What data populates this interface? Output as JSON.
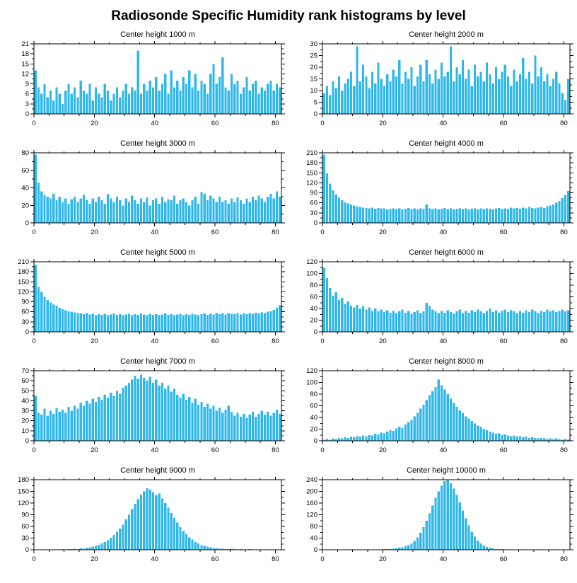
{
  "page_title": "Radiosonde Specific Humidity rank histograms by level",
  "style": {
    "bar_color": "#2db7ea",
    "axis_color": "#000000",
    "background": "#ffffff"
  },
  "chart_data": [
    {
      "type": "bar",
      "title": "Center height 1000 m",
      "x_start": 0,
      "x_end": 82,
      "xticks": [
        0,
        20,
        40,
        60,
        80
      ],
      "ylim": [
        0,
        21
      ],
      "yticks": [
        0,
        3,
        6,
        9,
        12,
        15,
        18,
        21
      ],
      "xlabel": "",
      "ylabel": "",
      "grid": false,
      "legend": "none",
      "values": [
        13,
        8,
        6,
        9,
        5,
        7,
        4,
        8,
        6,
        3,
        7,
        9,
        6,
        8,
        5,
        10,
        7,
        6,
        9,
        4,
        8,
        6,
        5,
        9,
        7,
        4,
        6,
        8,
        5,
        7,
        9,
        6,
        8,
        7,
        19,
        6,
        9,
        7,
        10,
        8,
        11,
        7,
        9,
        12,
        6,
        13,
        8,
        10,
        7,
        11,
        9,
        13,
        8,
        12,
        7,
        10,
        9,
        6,
        12,
        15,
        9,
        11,
        17,
        8,
        7,
        12,
        9,
        10,
        6,
        8,
        11,
        7,
        9,
        10,
        6,
        8,
        7,
        9,
        10,
        7,
        9,
        8
      ]
    },
    {
      "type": "bar",
      "title": "Center height 2000 m",
      "x_start": 0,
      "x_end": 82,
      "xticks": [
        0,
        20,
        40,
        60,
        80
      ],
      "ylim": [
        0,
        30
      ],
      "yticks": [
        0,
        5,
        10,
        15,
        20,
        25,
        30
      ],
      "xlabel": "",
      "ylabel": "",
      "grid": false,
      "legend": "none",
      "values": [
        9,
        12,
        8,
        14,
        11,
        16,
        10,
        13,
        15,
        18,
        12,
        29,
        14,
        21,
        16,
        11,
        18,
        13,
        22,
        15,
        12,
        17,
        14,
        19,
        16,
        23,
        13,
        18,
        15,
        20,
        12,
        16,
        21,
        14,
        23,
        17,
        13,
        19,
        15,
        22,
        16,
        18,
        29,
        14,
        20,
        17,
        23,
        15,
        19,
        12,
        21,
        16,
        18,
        14,
        22,
        17,
        13,
        20,
        15,
        18,
        21,
        16,
        12,
        19,
        14,
        17,
        24,
        15,
        18,
        13,
        25,
        16,
        20,
        14,
        17,
        12,
        15,
        18,
        13,
        9,
        6,
        15
      ]
    },
    {
      "type": "bar",
      "title": "Center height 3000 m",
      "x_start": 0,
      "x_end": 82,
      "xticks": [
        0,
        20,
        40,
        60,
        80
      ],
      "ylim": [
        0,
        80
      ],
      "yticks": [
        0,
        20,
        40,
        60,
        80
      ],
      "xlabel": "",
      "ylabel": "",
      "grid": false,
      "legend": "none",
      "values": [
        78,
        46,
        36,
        32,
        30,
        28,
        33,
        26,
        30,
        24,
        28,
        22,
        27,
        30,
        24,
        28,
        32,
        26,
        22,
        28,
        24,
        30,
        26,
        22,
        33,
        28,
        24,
        30,
        26,
        20,
        28,
        24,
        31,
        26,
        22,
        28,
        24,
        29,
        20,
        26,
        28,
        22,
        30,
        24,
        27,
        26,
        31,
        22,
        26,
        28,
        24,
        20,
        26,
        30,
        22,
        35,
        33,
        26,
        31,
        28,
        24,
        30,
        24,
        26,
        22,
        28,
        24,
        29,
        26,
        22,
        28,
        24,
        30,
        26,
        31,
        28,
        24,
        30,
        33,
        28,
        36,
        30
      ]
    },
    {
      "type": "bar",
      "title": "Center height 4000 m",
      "x_start": 0,
      "x_end": 82,
      "xticks": [
        0,
        20,
        40,
        60,
        80
      ],
      "ylim": [
        0,
        210
      ],
      "yticks": [
        0,
        30,
        60,
        90,
        120,
        150,
        180,
        210
      ],
      "xlabel": "",
      "ylabel": "",
      "grid": false,
      "legend": "none",
      "values": [
        205,
        148,
        118,
        98,
        85,
        75,
        68,
        62,
        58,
        55,
        52,
        50,
        48,
        46,
        45,
        44,
        46,
        42,
        45,
        43,
        44,
        40,
        42,
        44,
        41,
        43,
        40,
        42,
        45,
        41,
        43,
        40,
        44,
        42,
        55,
        43,
        41,
        44,
        40,
        42,
        45,
        41,
        43,
        40,
        42,
        44,
        41,
        43,
        40,
        42,
        44,
        40,
        43,
        41,
        44,
        42,
        40,
        43,
        45,
        41,
        44,
        42,
        46,
        43,
        45,
        42,
        46,
        44,
        48,
        45,
        44,
        46,
        48,
        45,
        50,
        52,
        55,
        60,
        66,
        74,
        84,
        95
      ]
    },
    {
      "type": "bar",
      "title": "Center height 5000 m",
      "x_start": 0,
      "x_end": 82,
      "xticks": [
        0,
        20,
        40,
        60,
        80
      ],
      "ylim": [
        0,
        210
      ],
      "yticks": [
        0,
        30,
        60,
        90,
        120,
        150,
        180,
        210
      ],
      "xlabel": "",
      "ylabel": "",
      "grid": false,
      "legend": "none",
      "values": [
        200,
        135,
        120,
        105,
        95,
        88,
        82,
        78,
        72,
        68,
        65,
        62,
        60,
        58,
        56,
        55,
        53,
        56,
        52,
        54,
        50,
        53,
        51,
        54,
        50,
        52,
        55,
        51,
        53,
        50,
        52,
        54,
        50,
        53,
        51,
        55,
        52,
        50,
        54,
        51,
        53,
        50,
        52,
        55,
        51,
        53,
        50,
        52,
        54,
        50,
        53,
        51,
        54,
        52,
        50,
        53,
        55,
        51,
        54,
        52,
        56,
        53,
        55,
        52,
        56,
        54,
        53,
        56,
        52,
        55,
        53,
        56,
        54,
        57,
        55,
        58,
        56,
        60,
        62,
        66,
        72,
        80
      ]
    },
    {
      "type": "bar",
      "title": "Center height 6000 m",
      "x_start": 0,
      "x_end": 82,
      "xticks": [
        0,
        20,
        40,
        60,
        80
      ],
      "ylim": [
        0,
        120
      ],
      "yticks": [
        0,
        20,
        40,
        60,
        80,
        100,
        120
      ],
      "xlabel": "",
      "ylabel": "",
      "grid": false,
      "legend": "none",
      "values": [
        110,
        92,
        75,
        62,
        68,
        55,
        58,
        48,
        52,
        45,
        42,
        46,
        40,
        44,
        38,
        42,
        36,
        40,
        35,
        38,
        34,
        37,
        33,
        36,
        32,
        35,
        38,
        33,
        36,
        31,
        34,
        37,
        32,
        35,
        50,
        44,
        38,
        35,
        32,
        36,
        33,
        37,
        34,
        31,
        35,
        38,
        32,
        36,
        33,
        37,
        34,
        38,
        35,
        32,
        36,
        40,
        34,
        37,
        33,
        36,
        38,
        34,
        37,
        35,
        32,
        36,
        33,
        37,
        34,
        38,
        35,
        32,
        36,
        34,
        38,
        35,
        37,
        34,
        36,
        38,
        35,
        37
      ]
    },
    {
      "type": "bar",
      "title": "Center height 7000 m",
      "x_start": 0,
      "x_end": 82,
      "xticks": [
        0,
        20,
        40,
        60,
        80
      ],
      "ylim": [
        0,
        70
      ],
      "yticks": [
        0,
        10,
        20,
        30,
        40,
        50,
        60,
        70
      ],
      "xlabel": "",
      "ylabel": "",
      "grid": false,
      "legend": "none",
      "values": [
        45,
        28,
        26,
        32,
        25,
        30,
        27,
        33,
        29,
        31,
        28,
        34,
        30,
        35,
        32,
        38,
        35,
        40,
        37,
        42,
        39,
        44,
        41,
        46,
        43,
        48,
        45,
        50,
        47,
        53,
        55,
        58,
        61,
        65,
        62,
        66,
        63,
        60,
        64,
        58,
        61,
        55,
        58,
        52,
        55,
        49,
        52,
        46,
        43,
        47,
        41,
        44,
        38,
        42,
        36,
        39,
        34,
        37,
        32,
        35,
        30,
        33,
        28,
        31,
        35,
        29,
        25,
        28,
        24,
        27,
        23,
        26,
        29,
        24,
        27,
        30,
        26,
        29,
        25,
        28,
        31,
        27
      ]
    },
    {
      "type": "bar",
      "title": "Center height 8000 m",
      "x_start": 0,
      "x_end": 82,
      "xticks": [
        0,
        20,
        40,
        60,
        80
      ],
      "ylim": [
        0,
        120
      ],
      "yticks": [
        0,
        20,
        40,
        60,
        80,
        100,
        120
      ],
      "xlabel": "",
      "ylabel": "",
      "grid": false,
      "legend": "none",
      "values": [
        2,
        3,
        2,
        4,
        3,
        5,
        4,
        6,
        5,
        7,
        6,
        8,
        7,
        9,
        8,
        10,
        9,
        12,
        11,
        14,
        13,
        16,
        18,
        17,
        21,
        24,
        22,
        28,
        32,
        36,
        42,
        48,
        55,
        62,
        70,
        78,
        85,
        92,
        105,
        95,
        88,
        80,
        72,
        65,
        58,
        52,
        48,
        42,
        38,
        34,
        30,
        26,
        24,
        20,
        18,
        16,
        14,
        12,
        13,
        10,
        11,
        9,
        8,
        9,
        7,
        8,
        6,
        7,
        5,
        6,
        5,
        4,
        5,
        4,
        3,
        4,
        3,
        4,
        3,
        2,
        3,
        2
      ]
    },
    {
      "type": "bar",
      "title": "Center height 9000 m",
      "x_start": 0,
      "x_end": 82,
      "xticks": [
        0,
        20,
        40,
        60,
        80
      ],
      "ylim": [
        0,
        180
      ],
      "yticks": [
        0,
        30,
        60,
        90,
        120,
        150,
        180
      ],
      "xlabel": "",
      "ylabel": "",
      "grid": false,
      "legend": "none",
      "values": [
        0,
        0,
        1,
        0,
        1,
        1,
        0,
        1,
        1,
        2,
        1,
        2,
        2,
        3,
        2,
        4,
        3,
        5,
        6,
        8,
        10,
        13,
        16,
        20,
        25,
        30,
        38,
        46,
        55,
        65,
        78,
        90,
        105,
        118,
        130,
        142,
        150,
        158,
        155,
        148,
        140,
        145,
        132,
        120,
        108,
        95,
        82,
        70,
        58,
        48,
        40,
        32,
        26,
        20,
        16,
        12,
        10,
        8,
        6,
        5,
        4,
        3,
        3,
        2,
        2,
        3,
        2,
        1,
        2,
        1,
        1,
        2,
        1,
        1,
        0,
        1,
        1,
        0,
        1,
        0,
        1,
        0
      ]
    },
    {
      "type": "bar",
      "title": "Center height 10000 m",
      "x_start": 0,
      "x_end": 82,
      "xticks": [
        0,
        20,
        40,
        60,
        80
      ],
      "ylim": [
        0,
        240
      ],
      "yticks": [
        0,
        40,
        80,
        120,
        160,
        200,
        240
      ],
      "xlabel": "",
      "ylabel": "",
      "grid": false,
      "legend": "none",
      "values": [
        0,
        0,
        0,
        0,
        0,
        0,
        0,
        0,
        0,
        0,
        0,
        0,
        0,
        1,
        0,
        1,
        1,
        0,
        1,
        1,
        2,
        2,
        3,
        4,
        5,
        7,
        9,
        12,
        16,
        22,
        30,
        42,
        58,
        78,
        100,
        125,
        152,
        178,
        200,
        220,
        235,
        240,
        228,
        210,
        188,
        162,
        135,
        108,
        84,
        62,
        45,
        32,
        22,
        15,
        10,
        7,
        5,
        3,
        2,
        2,
        1,
        1,
        1,
        0,
        1,
        0,
        0,
        1,
        0,
        0,
        0,
        1,
        0,
        0,
        0,
        0,
        0,
        0,
        0,
        0,
        0,
        0
      ]
    }
  ]
}
